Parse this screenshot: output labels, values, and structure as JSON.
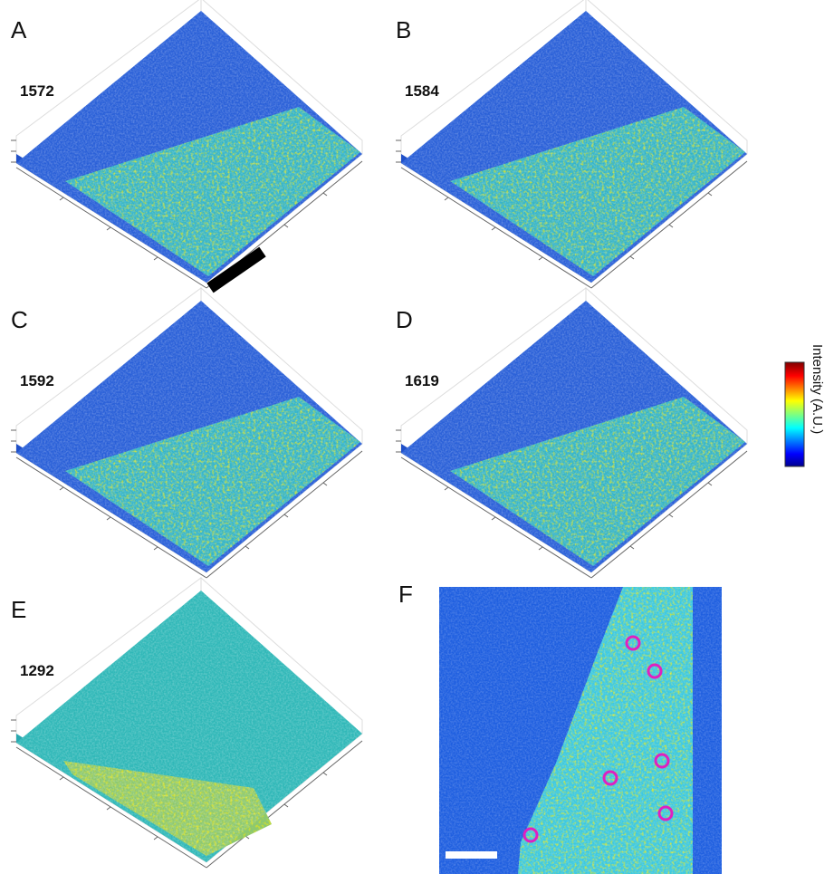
{
  "panels": [
    {
      "letter": "A",
      "label": "1572"
    },
    {
      "letter": "B",
      "label": "1584"
    },
    {
      "letter": "C",
      "label": "1592"
    },
    {
      "letter": "D",
      "label": "1619"
    },
    {
      "letter": "E",
      "label": "1292"
    }
  ],
  "image_panel": {
    "letter": "F"
  },
  "colorbar": {
    "label": "Intensity (A.U.)"
  }
}
